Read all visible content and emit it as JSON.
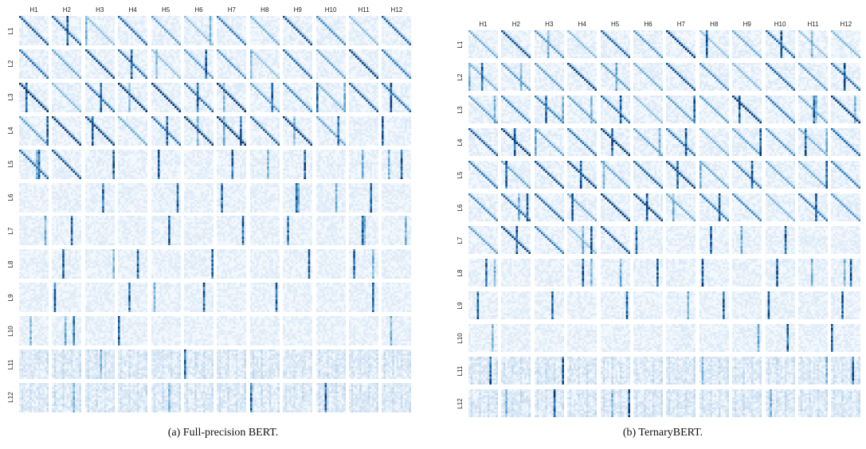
{
  "chart_data": [
    {
      "type": "heatmap",
      "caption": "(a) Full-precision BERT.",
      "heads": [
        "H1",
        "H2",
        "H3",
        "H4",
        "H5",
        "H6",
        "H7",
        "H8",
        "H9",
        "H10",
        "H11",
        "H12"
      ],
      "layers": [
        "L1",
        "L2",
        "L3",
        "L4",
        "L5",
        "L6",
        "L7",
        "L8",
        "L9",
        "L10",
        "L11",
        "L12"
      ],
      "colormap": [
        "#f7fbff",
        "#c6dbef",
        "#6baed6",
        "#2171b5",
        "#08306b"
      ]
    },
    {
      "type": "heatmap",
      "caption": "(b) TernaryBERT.",
      "heads": [
        "H1",
        "H2",
        "H3",
        "H4",
        "H5",
        "H6",
        "H7",
        "H8",
        "H9",
        "H10",
        "H11",
        "H12"
      ],
      "layers": [
        "L1",
        "L2",
        "L3",
        "L4",
        "L5",
        "L6",
        "L7",
        "L8",
        "L9",
        "L10",
        "L11",
        "L12"
      ],
      "colormap": [
        "#f7fbff",
        "#c6dbef",
        "#6baed6",
        "#2171b5",
        "#08306b"
      ]
    }
  ]
}
